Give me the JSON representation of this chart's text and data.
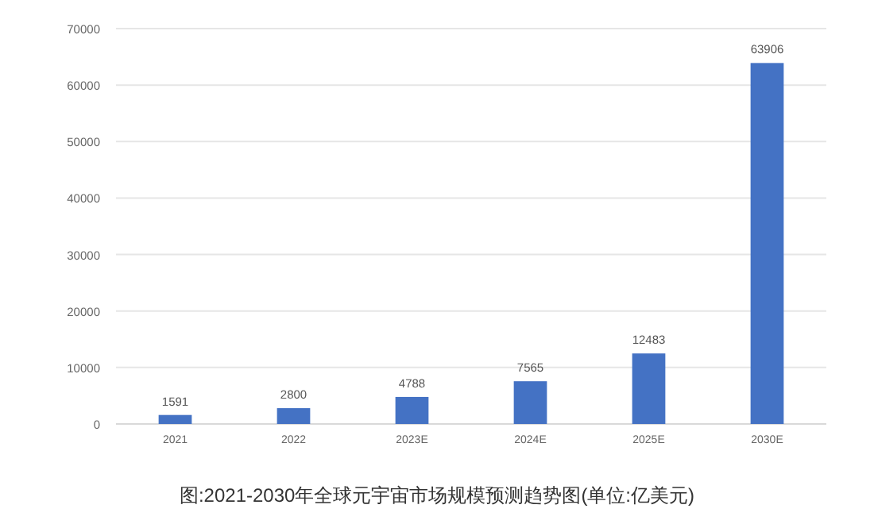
{
  "chart_data": {
    "type": "bar",
    "categories": [
      "2021",
      "2022",
      "2023E",
      "2024E",
      "2025E",
      "2030E"
    ],
    "values": [
      1591,
      2800,
      4788,
      7565,
      12483,
      63906
    ],
    "color": "#4472c4",
    "ylim": [
      0,
      70000
    ],
    "yticks": [
      0,
      10000,
      20000,
      30000,
      40000,
      50000,
      60000,
      70000
    ],
    "grid": "y",
    "data_labels": true,
    "annotations": [
      "图:2021-2030年全球元宇宙市场规模预测趋势图(单位:亿美元)"
    ]
  }
}
